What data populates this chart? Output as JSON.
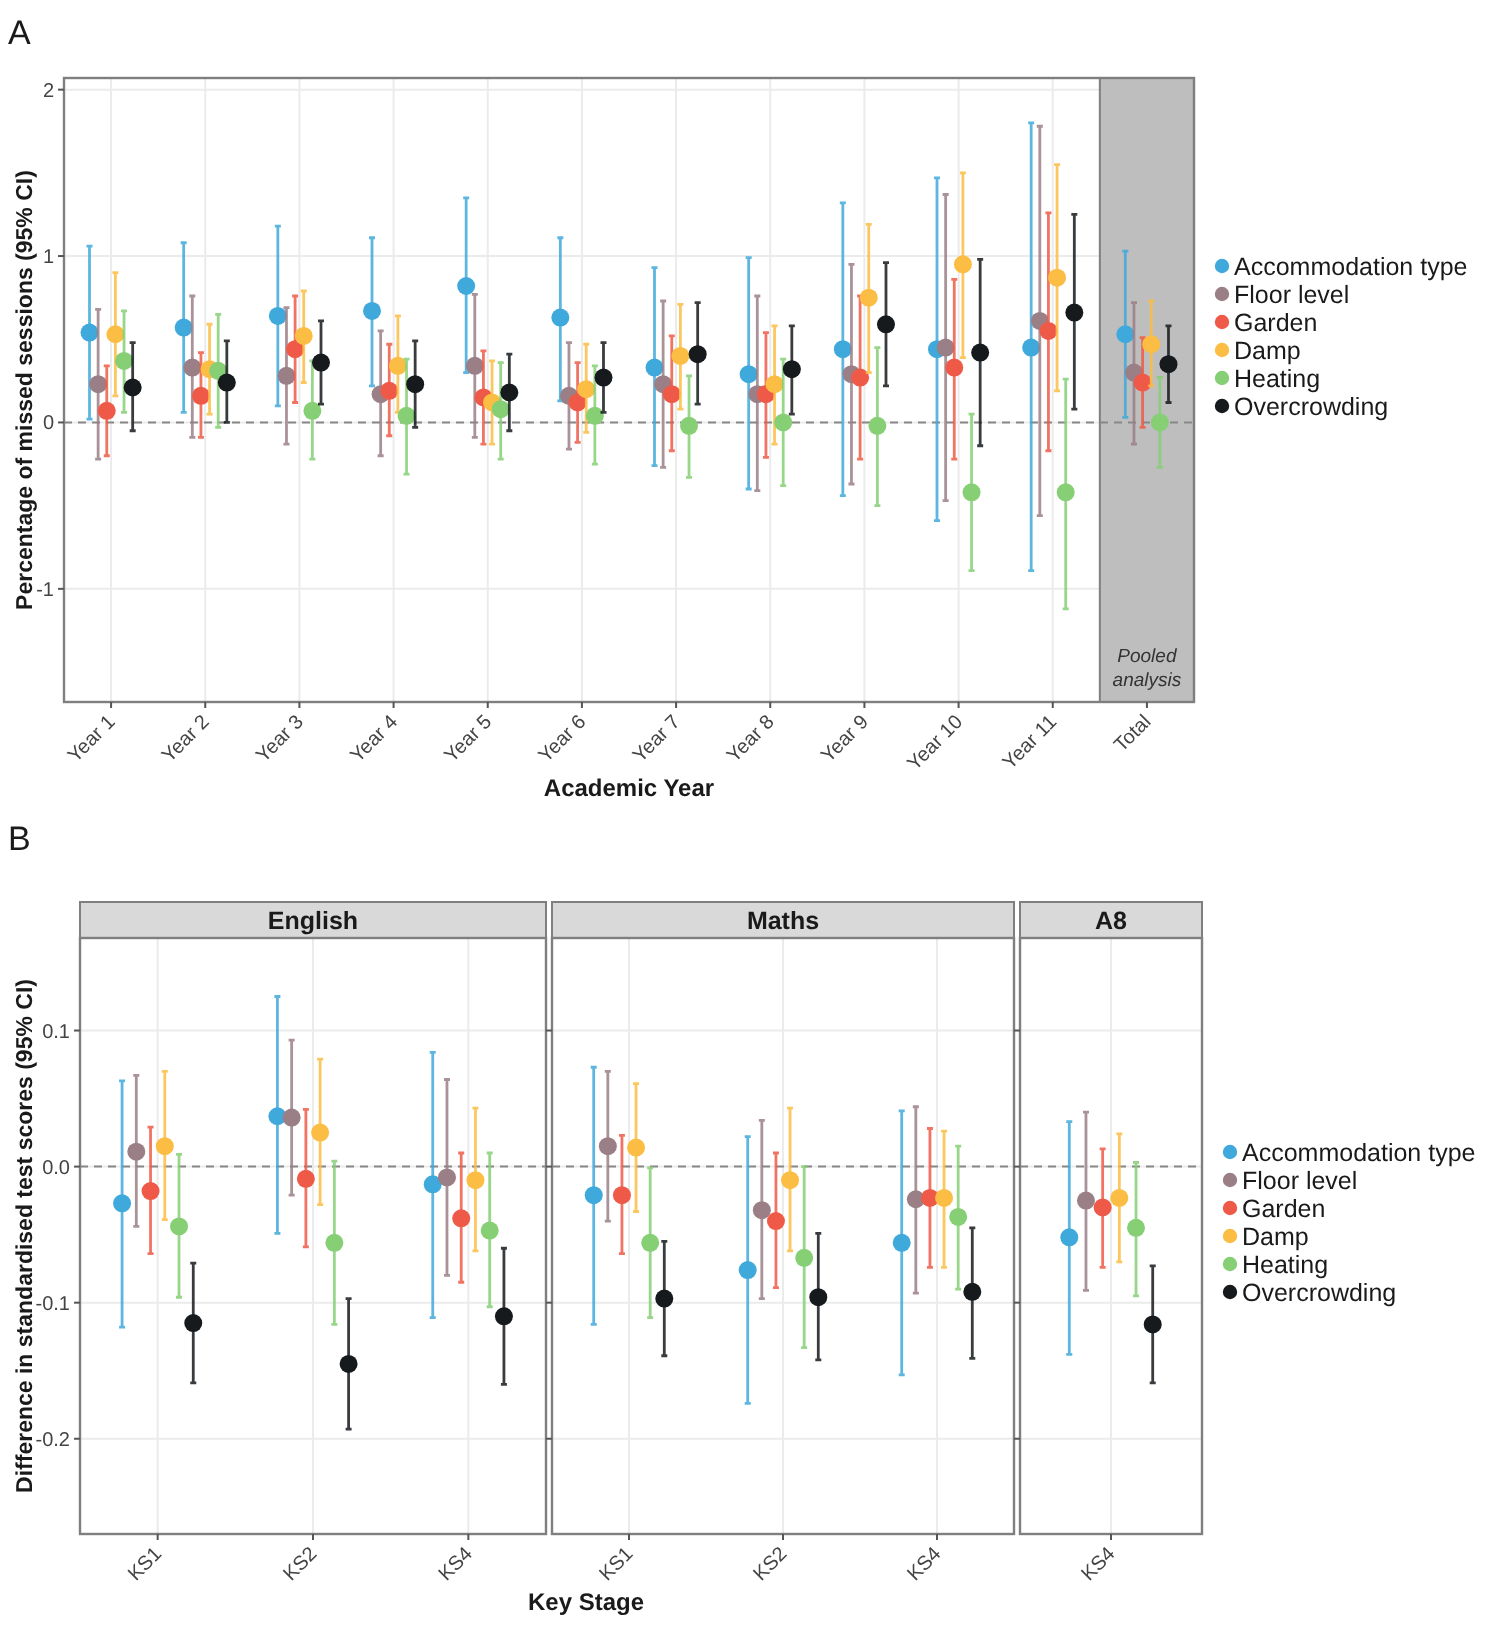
{
  "chart_data": [
    {
      "type": "scatter",
      "title": "A",
      "xlabel": "Academic Year",
      "ylabel": "Percentage of missed sessions (95% CI)",
      "categories": [
        "Year 1",
        "Year 2",
        "Year 3",
        "Year 4",
        "Year 5",
        "Year 6",
        "Year 7",
        "Year 8",
        "Year 9",
        "Year 10",
        "Year 11",
        "Total"
      ],
      "ylim": [
        -1.68,
        2.07
      ],
      "yticks": [
        -1,
        0,
        1,
        2
      ],
      "grid": true,
      "legend": "right",
      "marker": "circle",
      "ref_lines": [
        {
          "axis": "y",
          "value": 0,
          "color": "#888888",
          "line_style": "dashed"
        }
      ],
      "bands": [
        {
          "axis": "x",
          "from": "Total",
          "to": "Total",
          "label": "Pooled analysis",
          "color": "#bebebe"
        }
      ],
      "series": [
        {
          "name": "Accommodation type",
          "color": "#3fa9db",
          "values": [
            0.54,
            0.57,
            0.64,
            0.67,
            0.82,
            0.63,
            0.33,
            0.29,
            0.44,
            0.44,
            0.45,
            0.53
          ],
          "errors": [
            [
              0.02,
              1.06
            ],
            [
              0.06,
              1.08
            ],
            [
              0.1,
              1.18
            ],
            [
              0.22,
              1.11
            ],
            [
              0.3,
              1.35
            ],
            [
              0.13,
              1.11
            ],
            [
              -0.26,
              0.93
            ],
            [
              -0.4,
              0.99
            ],
            [
              -0.44,
              1.32
            ],
            [
              -0.59,
              1.47
            ],
            [
              -0.89,
              1.8
            ],
            [
              0.03,
              1.03
            ]
          ]
        },
        {
          "name": "Floor level",
          "color": "#9a7f86",
          "values": [
            0.23,
            0.33,
            0.28,
            0.17,
            0.34,
            0.16,
            0.23,
            0.17,
            0.29,
            0.45,
            0.61,
            0.3
          ],
          "errors": [
            [
              -0.22,
              0.68
            ],
            [
              -0.09,
              0.76
            ],
            [
              -0.13,
              0.69
            ],
            [
              -0.2,
              0.55
            ],
            [
              -0.09,
              0.77
            ],
            [
              -0.16,
              0.48
            ],
            [
              -0.27,
              0.73
            ],
            [
              -0.41,
              0.76
            ],
            [
              -0.37,
              0.95
            ],
            [
              -0.47,
              1.37
            ],
            [
              -0.56,
              1.78
            ],
            [
              -0.13,
              0.72
            ]
          ]
        },
        {
          "name": "Garden",
          "color": "#ef5a48",
          "values": [
            0.07,
            0.16,
            0.44,
            0.19,
            0.15,
            0.12,
            0.17,
            0.17,
            0.27,
            0.33,
            0.55,
            0.24
          ],
          "errors": [
            [
              -0.2,
              0.34
            ],
            [
              -0.09,
              0.42
            ],
            [
              0.12,
              0.76
            ],
            [
              -0.08,
              0.47
            ],
            [
              -0.13,
              0.43
            ],
            [
              -0.12,
              0.36
            ],
            [
              -0.17,
              0.52
            ],
            [
              -0.21,
              0.54
            ],
            [
              -0.22,
              0.76
            ],
            [
              -0.22,
              0.86
            ],
            [
              -0.17,
              1.26
            ],
            [
              -0.03,
              0.51
            ]
          ]
        },
        {
          "name": "Damp",
          "color": "#fbbd43",
          "values": [
            0.53,
            0.32,
            0.52,
            0.34,
            0.12,
            0.2,
            0.4,
            0.23,
            0.75,
            0.95,
            0.87,
            0.47
          ],
          "errors": [
            [
              0.16,
              0.9
            ],
            [
              0.05,
              0.59
            ],
            [
              0.24,
              0.79
            ],
            [
              0.06,
              0.64
            ],
            [
              -0.13,
              0.37
            ],
            [
              -0.06,
              0.47
            ],
            [
              0.08,
              0.71
            ],
            [
              -0.13,
              0.58
            ],
            [
              0.3,
              1.19
            ],
            [
              0.39,
              1.5
            ],
            [
              0.19,
              1.55
            ],
            [
              0.22,
              0.73
            ]
          ]
        },
        {
          "name": "Heating",
          "color": "#86cf75",
          "values": [
            0.37,
            0.31,
            0.07,
            0.04,
            0.08,
            0.04,
            -0.02,
            0.0,
            -0.02,
            -0.42,
            -0.42,
            0.0
          ],
          "errors": [
            [
              0.06,
              0.67
            ],
            [
              -0.03,
              0.65
            ],
            [
              -0.22,
              0.37
            ],
            [
              -0.31,
              0.38
            ],
            [
              -0.22,
              0.36
            ],
            [
              -0.25,
              0.34
            ],
            [
              -0.33,
              0.28
            ],
            [
              -0.38,
              0.38
            ],
            [
              -0.5,
              0.45
            ],
            [
              -0.89,
              0.05
            ],
            [
              -1.12,
              0.26
            ],
            [
              -0.27,
              0.27
            ]
          ]
        },
        {
          "name": "Overcrowding",
          "color": "#161a1d",
          "values": [
            0.21,
            0.24,
            0.36,
            0.23,
            0.18,
            0.27,
            0.41,
            0.32,
            0.59,
            0.42,
            0.66,
            0.35
          ],
          "errors": [
            [
              -0.05,
              0.48
            ],
            [
              0.0,
              0.49
            ],
            [
              0.11,
              0.61
            ],
            [
              -0.03,
              0.49
            ],
            [
              -0.05,
              0.41
            ],
            [
              0.06,
              0.48
            ],
            [
              0.11,
              0.72
            ],
            [
              0.05,
              0.58
            ],
            [
              0.22,
              0.96
            ],
            [
              -0.14,
              0.98
            ],
            [
              0.08,
              1.25
            ],
            [
              0.12,
              0.58
            ]
          ]
        }
      ]
    },
    {
      "type": "scatter",
      "title": "B",
      "subtitle": "English",
      "ylabel": "Difference in standardised test scores (95% CI)",
      "categories": [
        "KS1",
        "KS2",
        "KS4"
      ],
      "ylim": [
        -0.27,
        0.168
      ],
      "yticks": [
        {
          "value": -0.2,
          "label": "-0.2"
        },
        {
          "value": -0.1,
          "label": "-0.1"
        },
        {
          "value": 0,
          "label": "0.0"
        },
        {
          "value": 0.1,
          "label": "0.1"
        }
      ],
      "grid": true,
      "marker": "circle",
      "ref_lines": [
        {
          "axis": "y",
          "value": 0,
          "color": "#888888",
          "line_style": "dashed"
        }
      ],
      "series": [
        {
          "color": "#3fa9db",
          "values": [
            -0.027,
            0.037,
            -0.013
          ],
          "errors": [
            [
              -0.118,
              0.063
            ],
            [
              -0.049,
              0.125
            ],
            [
              -0.111,
              0.084
            ]
          ]
        },
        {
          "color": "#9a7f86",
          "values": [
            0.011,
            0.036,
            -0.008
          ],
          "errors": [
            [
              -0.044,
              0.067
            ],
            [
              -0.021,
              0.093
            ],
            [
              -0.08,
              0.064
            ]
          ]
        },
        {
          "color": "#ef5a48",
          "values": [
            -0.018,
            -0.009,
            -0.038
          ],
          "errors": [
            [
              -0.064,
              0.029
            ],
            [
              -0.059,
              0.042
            ],
            [
              -0.085,
              0.01
            ]
          ]
        },
        {
          "color": "#fbbd43",
          "values": [
            0.015,
            0.025,
            -0.01
          ],
          "errors": [
            [
              -0.039,
              0.07
            ],
            [
              -0.028,
              0.079
            ],
            [
              -0.062,
              0.043
            ]
          ]
        },
        {
          "color": "#86cf75",
          "values": [
            -0.044,
            -0.056,
            -0.047
          ],
          "errors": [
            [
              -0.096,
              0.009
            ],
            [
              -0.116,
              0.004
            ],
            [
              -0.103,
              0.01
            ]
          ]
        },
        {
          "color": "#161a1d",
          "values": [
            -0.115,
            -0.145,
            -0.11
          ],
          "errors": [
            [
              -0.159,
              -0.071
            ],
            [
              -0.193,
              -0.097
            ],
            [
              -0.16,
              -0.06
            ]
          ]
        }
      ]
    },
    {
      "type": "scatter",
      "subtitle": "Maths",
      "xlabel": "Key Stage",
      "categories": [
        "KS1",
        "KS2",
        "KS4"
      ],
      "ylim": [
        -0.27,
        0.168
      ],
      "yticks": [
        {
          "value": -0.2,
          "label": null
        },
        {
          "value": -0.1,
          "label": null
        },
        {
          "value": 0,
          "label": null
        },
        {
          "value": 0.1,
          "label": null
        }
      ],
      "tick_labels": "x",
      "grid": true,
      "marker": "circle",
      "ref_lines": [
        {
          "axis": "y",
          "value": 0,
          "color": "#888888",
          "line_style": "dashed"
        }
      ],
      "series": [
        {
          "color": "#3fa9db",
          "values": [
            -0.021,
            -0.076,
            -0.056
          ],
          "errors": [
            [
              -0.116,
              0.073
            ],
            [
              -0.174,
              0.022
            ],
            [
              -0.153,
              0.041
            ]
          ]
        },
        {
          "color": "#9a7f86",
          "values": [
            0.015,
            -0.032,
            -0.024
          ],
          "errors": [
            [
              -0.04,
              0.07
            ],
            [
              -0.097,
              0.034
            ],
            [
              -0.093,
              0.044
            ]
          ]
        },
        {
          "color": "#ef5a48",
          "values": [
            -0.021,
            -0.04,
            -0.023
          ],
          "errors": [
            [
              -0.064,
              0.023
            ],
            [
              -0.089,
              0.01
            ],
            [
              -0.074,
              0.028
            ]
          ]
        },
        {
          "color": "#fbbd43",
          "values": [
            0.014,
            -0.01,
            -0.023
          ],
          "errors": [
            [
              -0.033,
              0.061
            ],
            [
              -0.062,
              0.043
            ],
            [
              -0.074,
              0.026
            ]
          ]
        },
        {
          "color": "#86cf75",
          "values": [
            -0.056,
            -0.067,
            -0.037
          ],
          "errors": [
            [
              -0.111,
              -0.001
            ],
            [
              -0.133,
              0.0
            ],
            [
              -0.09,
              0.015
            ]
          ]
        },
        {
          "color": "#161a1d",
          "values": [
            -0.097,
            -0.096,
            -0.092
          ],
          "errors": [
            [
              -0.139,
              -0.055
            ],
            [
              -0.142,
              -0.049
            ],
            [
              -0.141,
              -0.045
            ]
          ]
        }
      ]
    },
    {
      "type": "scatter",
      "subtitle": "A8",
      "categories": [
        "KS4"
      ],
      "ylim": [
        -0.27,
        0.168
      ],
      "yticks": [
        {
          "value": -0.2,
          "label": null
        },
        {
          "value": -0.1,
          "label": null
        },
        {
          "value": 0,
          "label": null
        },
        {
          "value": 0.1,
          "label": null
        }
      ],
      "tick_labels": "x",
      "grid": true,
      "legend": "right",
      "marker": "circle",
      "ref_lines": [
        {
          "axis": "y",
          "value": 0,
          "color": "#888888",
          "line_style": "dashed"
        }
      ],
      "series": [
        {
          "name": "Accommodation type",
          "color": "#3fa9db",
          "values": [
            -0.052
          ],
          "errors": [
            [
              -0.138,
              0.033
            ]
          ]
        },
        {
          "name": "Floor level",
          "color": "#9a7f86",
          "values": [
            -0.025
          ],
          "errors": [
            [
              -0.091,
              0.04
            ]
          ]
        },
        {
          "name": "Garden",
          "color": "#ef5a48",
          "values": [
            -0.03
          ],
          "errors": [
            [
              -0.074,
              0.013
            ]
          ]
        },
        {
          "name": "Damp",
          "color": "#fbbd43",
          "values": [
            -0.023
          ],
          "errors": [
            [
              -0.07,
              0.024
            ]
          ]
        },
        {
          "name": "Heating",
          "color": "#86cf75",
          "values": [
            -0.045
          ],
          "errors": [
            [
              -0.095,
              0.003
            ]
          ]
        },
        {
          "name": "Overcrowding",
          "color": "#161a1d",
          "values": [
            -0.116
          ],
          "errors": [
            [
              -0.159,
              -0.073
            ]
          ]
        }
      ]
    }
  ]
}
